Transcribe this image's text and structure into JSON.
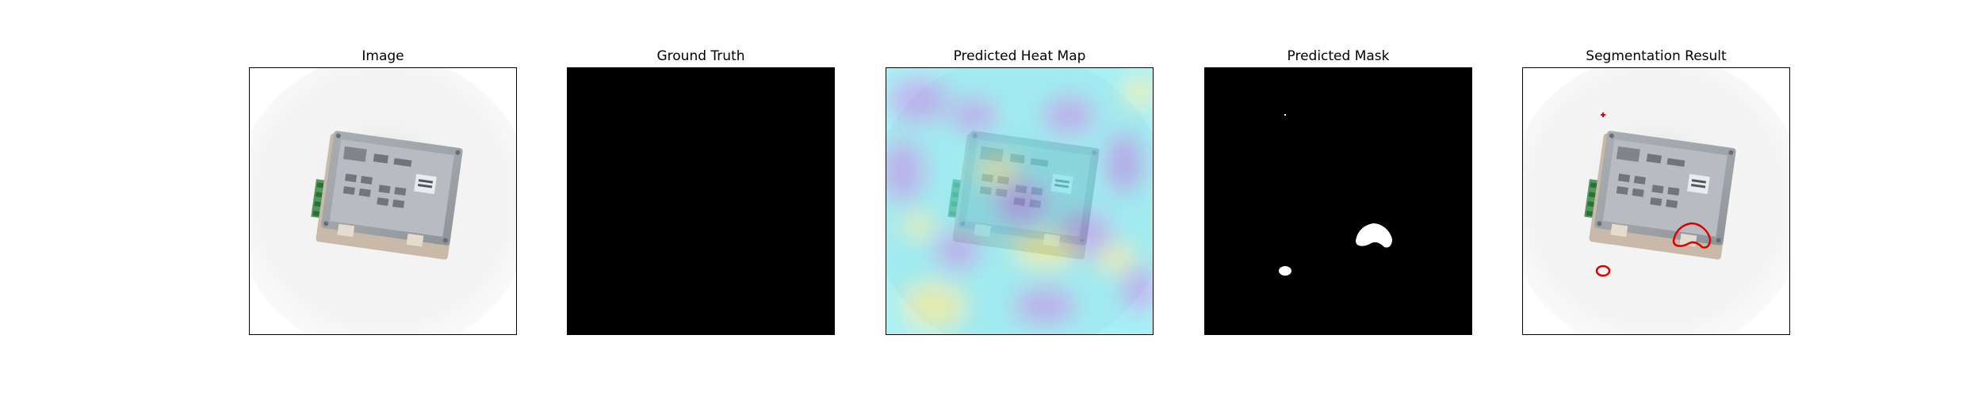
{
  "panels": [
    {
      "title": "Image"
    },
    {
      "title": "Ground Truth"
    },
    {
      "title": "Predicted Heat Map"
    },
    {
      "title": "Predicted Mask"
    },
    {
      "title": "Segmentation Result"
    }
  ],
  "colors": {
    "mask_background": "#000000",
    "mask_foreground": "#ffffff",
    "contour": "#e00000",
    "heatmap_cyan": "#6ee6ee",
    "heatmap_violet": "#9a8ce6",
    "heatmap_yellow": "#d8e884"
  }
}
